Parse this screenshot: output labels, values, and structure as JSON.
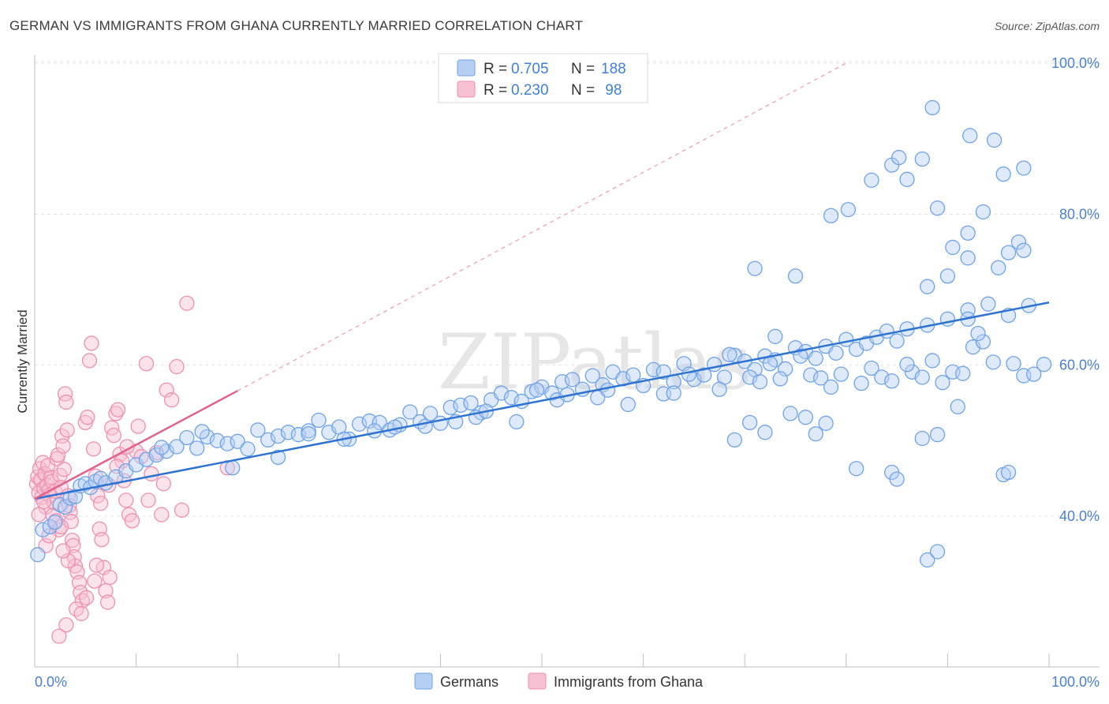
{
  "chart_data": {
    "type": "scatter",
    "title": "GERMAN VS IMMIGRANTS FROM GHANA CURRENTLY MARRIED CORRELATION CHART",
    "source": "Source: ZipAtlas.com",
    "watermark": "ZIPatlas",
    "xlabel": "",
    "ylabel": "Currently Married",
    "xlim": [
      0,
      100
    ],
    "ylim": [
      20,
      100
    ],
    "x_tick_labels": {
      "min": "0.0%",
      "max": "100.0%"
    },
    "y_ticks": [
      {
        "value": 40,
        "label": "40.0%"
      },
      {
        "value": 60,
        "label": "60.0%"
      },
      {
        "value": 80,
        "label": "80.0%"
      },
      {
        "value": 100,
        "label": "100.0%"
      }
    ],
    "legend": {
      "entries": [
        {
          "series": "Germans",
          "r_label": "R =",
          "r_value": "0.705",
          "n_label": "N =",
          "n_value": "188"
        },
        {
          "series": "Immigrants from Ghana",
          "r_label": "R =",
          "r_value": "0.230",
          "n_label": "N =",
          "n_value": " 98"
        }
      ]
    },
    "series": [
      {
        "name": "Germans",
        "color": "#6fa3e8",
        "fill": "#b5cff3",
        "trend": {
          "x": [
            0,
            100
          ],
          "y": [
            42.3,
            68.3
          ],
          "color": "#2f74d0"
        },
        "points": [
          [
            0.3,
            34.9
          ],
          [
            0.8,
            38.2
          ],
          [
            1.5,
            38.6
          ],
          [
            2,
            39.2
          ],
          [
            2.5,
            41.5
          ],
          [
            3,
            41.2
          ],
          [
            3.5,
            42.4
          ],
          [
            4,
            42.6
          ],
          [
            4.5,
            44
          ],
          [
            5,
            44.3
          ],
          [
            5.5,
            43.8
          ],
          [
            6,
            44.6
          ],
          [
            6.5,
            45
          ],
          [
            7,
            44.4
          ],
          [
            8,
            45.2
          ],
          [
            9,
            46
          ],
          [
            10,
            46.8
          ],
          [
            11,
            47.5
          ],
          [
            12,
            48.1
          ],
          [
            13,
            48.6
          ],
          [
            14,
            49.2
          ],
          [
            15,
            50.4
          ],
          [
            16,
            49
          ],
          [
            17,
            50.5
          ],
          [
            18,
            50
          ],
          [
            19,
            49.6
          ],
          [
            20,
            49.9
          ],
          [
            21,
            48.9
          ],
          [
            22,
            51.4
          ],
          [
            23,
            50.1
          ],
          [
            24,
            50.6
          ],
          [
            25,
            51.1
          ],
          [
            26,
            50.8
          ],
          [
            27,
            51.3
          ],
          [
            28,
            52.7
          ],
          [
            29,
            51.1
          ],
          [
            30,
            51.8
          ],
          [
            31,
            50.2
          ],
          [
            32,
            52.2
          ],
          [
            33,
            52.6
          ],
          [
            34,
            52.4
          ],
          [
            35,
            51.4
          ],
          [
            36,
            52.1
          ],
          [
            37,
            53.8
          ],
          [
            38,
            52.5
          ],
          [
            39,
            53.6
          ],
          [
            40,
            52.3
          ],
          [
            41,
            54.4
          ],
          [
            42,
            54.7
          ],
          [
            43,
            55
          ],
          [
            44,
            53.7
          ],
          [
            45,
            55.4
          ],
          [
            46,
            56.3
          ],
          [
            47,
            55.7
          ],
          [
            48,
            55.2
          ],
          [
            49,
            56.5
          ],
          [
            50,
            57.1
          ],
          [
            51,
            56.3
          ],
          [
            52,
            57.8
          ],
          [
            53,
            58.1
          ],
          [
            54,
            56.8
          ],
          [
            55,
            58.6
          ],
          [
            56,
            57.4
          ],
          [
            57,
            59.1
          ],
          [
            58,
            58.2
          ],
          [
            59,
            58.7
          ],
          [
            60,
            57.3
          ],
          [
            61,
            59.4
          ],
          [
            62,
            59.1
          ],
          [
            63,
            57.8
          ],
          [
            64,
            60.2
          ],
          [
            65,
            58.1
          ],
          [
            66,
            58.7
          ],
          [
            67,
            60.1
          ],
          [
            68,
            58.4
          ],
          [
            69,
            61.3
          ],
          [
            70,
            60.5
          ],
          [
            71,
            59.4
          ],
          [
            72,
            61.2
          ],
          [
            73,
            60.7
          ],
          [
            74,
            59.5
          ],
          [
            75,
            62.3
          ],
          [
            76,
            61.8
          ],
          [
            77,
            60.9
          ],
          [
            78,
            62.5
          ],
          [
            79,
            61.6
          ],
          [
            80,
            63.4
          ],
          [
            81,
            62.1
          ],
          [
            82,
            62.9
          ],
          [
            83,
            63.7
          ],
          [
            84,
            64.5
          ],
          [
            85,
            63.2
          ],
          [
            86,
            64.8
          ],
          [
            88,
            65.3
          ],
          [
            90,
            66.1
          ],
          [
            92,
            67.3
          ],
          [
            94,
            68.1
          ],
          [
            96,
            66.6
          ],
          [
            98,
            67.9
          ],
          [
            12.5,
            49.1
          ],
          [
            16.5,
            51.2
          ],
          [
            19.5,
            46.4
          ],
          [
            24,
            47.8
          ],
          [
            27,
            50.9
          ],
          [
            30.5,
            50.2
          ],
          [
            33.5,
            51.3
          ],
          [
            35.5,
            51.8
          ],
          [
            38.5,
            51.9
          ],
          [
            41.5,
            52.5
          ],
          [
            43.5,
            53.1
          ],
          [
            44.5,
            53.9
          ],
          [
            47.5,
            52.5
          ],
          [
            49.5,
            56.7
          ],
          [
            51.5,
            55.4
          ],
          [
            52.5,
            56.1
          ],
          [
            55.5,
            55.7
          ],
          [
            56.5,
            56.7
          ],
          [
            58.5,
            54.8
          ],
          [
            62,
            56.2
          ],
          [
            63,
            56.3
          ],
          [
            64.5,
            58.8
          ],
          [
            67.5,
            56.8
          ],
          [
            68.5,
            61.4
          ],
          [
            70.5,
            58.4
          ],
          [
            71.5,
            57.8
          ],
          [
            72.5,
            60.2
          ],
          [
            73.5,
            58.2
          ],
          [
            75.5,
            61.2
          ],
          [
            76.5,
            58.7
          ],
          [
            77.5,
            58.3
          ],
          [
            78.5,
            57.1
          ],
          [
            79.5,
            58.8
          ],
          [
            81.5,
            57.6
          ],
          [
            82.5,
            59.6
          ],
          [
            83.5,
            58.4
          ],
          [
            84.5,
            57.9
          ],
          [
            86.5,
            59.1
          ],
          [
            87.5,
            58.4
          ],
          [
            88.5,
            60.6
          ],
          [
            89.5,
            57.7
          ],
          [
            90.5,
            59.1
          ],
          [
            91.5,
            58.9
          ],
          [
            92.5,
            62.4
          ],
          [
            93.5,
            63.1
          ],
          [
            94.5,
            60.4
          ],
          [
            96.5,
            60.2
          ],
          [
            97.5,
            58.6
          ],
          [
            98.5,
            58.8
          ],
          [
            99.5,
            60.1
          ],
          [
            71,
            72.8
          ],
          [
            75,
            71.8
          ],
          [
            73,
            63.8
          ],
          [
            86,
            60.1
          ],
          [
            87.5,
            50.3
          ],
          [
            91,
            54.5
          ],
          [
            89,
            50.8
          ],
          [
            88,
            70.4
          ],
          [
            90,
            71.8
          ],
          [
            92,
            66.1
          ],
          [
            93,
            64.2
          ],
          [
            95,
            72.9
          ],
          [
            96,
            74.9
          ],
          [
            97,
            76.3
          ],
          [
            84.5,
            86.5
          ],
          [
            85.2,
            87.5
          ],
          [
            86,
            84.6
          ],
          [
            87.5,
            87.3
          ],
          [
            89,
            80.8
          ],
          [
            90.5,
            75.6
          ],
          [
            92,
            77.5
          ],
          [
            93.5,
            80.3
          ],
          [
            95.5,
            85.3
          ],
          [
            97.5,
            75.2
          ],
          [
            88.5,
            94.1
          ],
          [
            92.2,
            90.4
          ],
          [
            94.6,
            89.8
          ],
          [
            97.5,
            86.1
          ],
          [
            78.5,
            79.8
          ],
          [
            80.2,
            80.6
          ],
          [
            82.5,
            84.5
          ],
          [
            92,
            74.2
          ],
          [
            81,
            46.3
          ],
          [
            84.5,
            45.8
          ],
          [
            85,
            44.9
          ],
          [
            88,
            34.2
          ],
          [
            89,
            35.3
          ],
          [
            95.5,
            45.5
          ],
          [
            96,
            45.8
          ],
          [
            69,
            50.1
          ],
          [
            70.5,
            52.4
          ],
          [
            72,
            51.1
          ],
          [
            74.5,
            53.6
          ],
          [
            76,
            53.1
          ],
          [
            77,
            50.9
          ],
          [
            78,
            52.3
          ]
        ]
      },
      {
        "name": "Immigrants from Ghana",
        "color": "#ef8fb0",
        "fill": "#f7c0d3",
        "trend": {
          "x": [
            0,
            20
          ],
          "y": [
            42.3,
            56.6
          ],
          "color": "#e0628f"
        },
        "reference_line": {
          "x": [
            20,
            80
          ],
          "y": [
            56.6,
            100
          ],
          "style": "dashed"
        },
        "points": [
          [
            0.2,
            44.3
          ],
          [
            0.3,
            45.2
          ],
          [
            0.4,
            43.1
          ],
          [
            0.5,
            46.3
          ],
          [
            0.6,
            44.8
          ],
          [
            0.7,
            42.5
          ],
          [
            0.8,
            47.1
          ],
          [
            0.9,
            43.7
          ],
          [
            1,
            45.6
          ],
          [
            1.1,
            41.2
          ],
          [
            1.2,
            44.1
          ],
          [
            1.3,
            46.7
          ],
          [
            1.4,
            43.4
          ],
          [
            1.5,
            42.8
          ],
          [
            1.6,
            45.1
          ],
          [
            1.7,
            44.6
          ],
          [
            1.8,
            40.1
          ],
          [
            1.9,
            41.8
          ],
          [
            2,
            43.3
          ],
          [
            2.1,
            39.4
          ],
          [
            2.2,
            47.6
          ],
          [
            2.3,
            48.1
          ],
          [
            2.4,
            38.2
          ],
          [
            2.5,
            45.4
          ],
          [
            2.6,
            43.8
          ],
          [
            2.7,
            50.6
          ],
          [
            2.8,
            49.3
          ],
          [
            2.9,
            46.2
          ],
          [
            3,
            56.2
          ],
          [
            3.1,
            55.1
          ],
          [
            3.2,
            51.4
          ],
          [
            3.3,
            42.7
          ],
          [
            3.4,
            41.4
          ],
          [
            3.5,
            40.5
          ],
          [
            3.6,
            39.3
          ],
          [
            3.7,
            36.8
          ],
          [
            3.8,
            36.1
          ],
          [
            3.9,
            34.6
          ],
          [
            4,
            33.4
          ],
          [
            4.2,
            32.6
          ],
          [
            4.4,
            31.2
          ],
          [
            4.5,
            29.9
          ],
          [
            4.7,
            28.8
          ],
          [
            5,
            52.4
          ],
          [
            5.2,
            53.1
          ],
          [
            5.4,
            60.6
          ],
          [
            5.6,
            62.9
          ],
          [
            5.8,
            48.9
          ],
          [
            6,
            45.3
          ],
          [
            6.2,
            42.7
          ],
          [
            6.4,
            38.3
          ],
          [
            6.6,
            36.9
          ],
          [
            6.8,
            33.2
          ],
          [
            7,
            30.1
          ],
          [
            7.2,
            28.6
          ],
          [
            7.4,
            31.9
          ],
          [
            7.6,
            51.7
          ],
          [
            7.8,
            50.7
          ],
          [
            8,
            53.6
          ],
          [
            8.2,
            54.1
          ],
          [
            8.4,
            48.2
          ],
          [
            8.6,
            47.3
          ],
          [
            8.8,
            44.7
          ],
          [
            9,
            42.1
          ],
          [
            9.3,
            40.2
          ],
          [
            9.6,
            39.4
          ],
          [
            10,
            48.6
          ],
          [
            10.5,
            47.9
          ],
          [
            11,
            60.2
          ],
          [
            11.5,
            45.6
          ],
          [
            12,
            48.4
          ],
          [
            12.5,
            40.2
          ],
          [
            13,
            56.7
          ],
          [
            13.5,
            55.4
          ],
          [
            14,
            59.8
          ],
          [
            14.5,
            40.8
          ],
          [
            15,
            68.2
          ],
          [
            2.4,
            24.1
          ],
          [
            3.1,
            25.6
          ],
          [
            4.1,
            27.7
          ],
          [
            4.6,
            27.1
          ],
          [
            5.1,
            29.2
          ],
          [
            5.9,
            31.4
          ],
          [
            6.1,
            33.5
          ],
          [
            3.3,
            34.1
          ],
          [
            2.8,
            35.4
          ],
          [
            1.1,
            36.1
          ],
          [
            1.4,
            37.4
          ],
          [
            2.6,
            38.6
          ],
          [
            0.9,
            41.9
          ],
          [
            0.4,
            40.2
          ],
          [
            7.3,
            44.1
          ],
          [
            8.1,
            46.6
          ],
          [
            9.1,
            49.2
          ],
          [
            10.2,
            51.9
          ],
          [
            19,
            46.4
          ],
          [
            11.2,
            42.1
          ],
          [
            12.7,
            44.3
          ],
          [
            6.5,
            41.7
          ]
        ]
      }
    ]
  }
}
